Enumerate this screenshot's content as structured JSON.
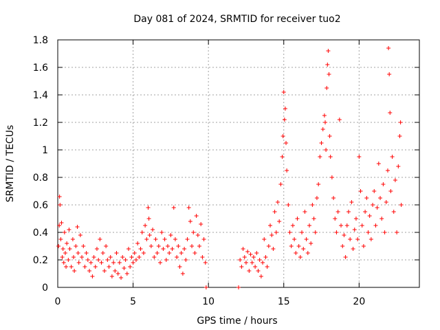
{
  "chart_data": {
    "type": "scatter",
    "title": "Day 081 of 2024, SRMTID for receiver tuo2",
    "xlabel": "GPS time / hours",
    "ylabel": "SRMTID / TECUs",
    "xlim": [
      0,
      24
    ],
    "ylim": [
      0,
      1.8
    ],
    "xticks": [
      0,
      5,
      10,
      15,
      20
    ],
    "xtick_labels": [
      "0",
      "5",
      "10",
      "15",
      "20"
    ],
    "yticks": [
      0,
      0.2,
      0.4,
      0.6,
      0.8,
      1.0,
      1.2,
      1.4,
      1.6,
      1.8
    ],
    "ytick_labels": [
      "0",
      "0.2",
      "0.4",
      "0.6",
      "0.8",
      "1",
      "1.2",
      "1.4",
      "1.6",
      "1.8"
    ],
    "grid": true,
    "marker": "+",
    "series_color": "#ff0000",
    "series": [
      {
        "name": "SRMTID",
        "points": [
          [
            0.05,
            0.3
          ],
          [
            0.1,
            0.45
          ],
          [
            0.12,
            0.66
          ],
          [
            0.15,
            0.6
          ],
          [
            0.2,
            0.35
          ],
          [
            0.25,
            0.47
          ],
          [
            0.3,
            0.22
          ],
          [
            0.35,
            0.28
          ],
          [
            0.4,
            0.18
          ],
          [
            0.45,
            0.4
          ],
          [
            0.5,
            0.25
          ],
          [
            0.55,
            0.15
          ],
          [
            0.6,
            0.32
          ],
          [
            0.7,
            0.2
          ],
          [
            0.75,
            0.42
          ],
          [
            0.8,
            0.28
          ],
          [
            0.9,
            0.15
          ],
          [
            1.0,
            0.35
          ],
          [
            1.05,
            0.22
          ],
          [
            1.1,
            0.12
          ],
          [
            1.2,
            0.3
          ],
          [
            1.3,
            0.44
          ],
          [
            1.35,
            0.25
          ],
          [
            1.4,
            0.18
          ],
          [
            1.5,
            0.38
          ],
          [
            1.6,
            0.22
          ],
          [
            1.7,
            0.3
          ],
          [
            1.8,
            0.15
          ],
          [
            1.9,
            0.25
          ],
          [
            2.0,
            0.2
          ],
          [
            2.1,
            0.12
          ],
          [
            2.2,
            0.18
          ],
          [
            2.3,
            0.08
          ],
          [
            2.4,
            0.22
          ],
          [
            2.5,
            0.15
          ],
          [
            2.6,
            0.28
          ],
          [
            2.7,
            0.2
          ],
          [
            2.8,
            0.35
          ],
          [
            2.9,
            0.18
          ],
          [
            3.0,
            0.25
          ],
          [
            3.1,
            0.12
          ],
          [
            3.2,
            0.3
          ],
          [
            3.3,
            0.2
          ],
          [
            3.4,
            0.15
          ],
          [
            3.5,
            0.22
          ],
          [
            3.6,
            0.08
          ],
          [
            3.7,
            0.18
          ],
          [
            3.8,
            0.12
          ],
          [
            3.9,
            0.25
          ],
          [
            4.0,
            0.1
          ],
          [
            4.1,
            0.18
          ],
          [
            4.2,
            0.07
          ],
          [
            4.3,
            0.22
          ],
          [
            4.4,
            0.14
          ],
          [
            4.5,
            0.2
          ],
          [
            4.6,
            0.1
          ],
          [
            4.7,
            0.28
          ],
          [
            4.8,
            0.15
          ],
          [
            4.9,
            0.22
          ],
          [
            5.0,
            0.18
          ],
          [
            5.1,
            0.25
          ],
          [
            5.2,
            0.2
          ],
          [
            5.3,
            0.32
          ],
          [
            5.4,
            0.22
          ],
          [
            5.5,
            0.28
          ],
          [
            5.6,
            0.4
          ],
          [
            5.7,
            0.25
          ],
          [
            5.8,
            0.45
          ],
          [
            5.9,
            0.35
          ],
          [
            6.0,
            0.58
          ],
          [
            6.05,
            0.5
          ],
          [
            6.1,
            0.38
          ],
          [
            6.2,
            0.3
          ],
          [
            6.3,
            0.42
          ],
          [
            6.4,
            0.22
          ],
          [
            6.5,
            0.35
          ],
          [
            6.6,
            0.25
          ],
          [
            6.7,
            0.3
          ],
          [
            6.8,
            0.18
          ],
          [
            6.9,
            0.4
          ],
          [
            7.0,
            0.28
          ],
          [
            7.1,
            0.35
          ],
          [
            7.2,
            0.2
          ],
          [
            7.3,
            0.3
          ],
          [
            7.4,
            0.25
          ],
          [
            7.5,
            0.38
          ],
          [
            7.6,
            0.28
          ],
          [
            7.7,
            0.58
          ],
          [
            7.8,
            0.35
          ],
          [
            7.9,
            0.22
          ],
          [
            8.0,
            0.3
          ],
          [
            8.1,
            0.15
          ],
          [
            8.2,
            0.25
          ],
          [
            8.3,
            0.1
          ],
          [
            8.4,
            0.28
          ],
          [
            8.5,
            0.2
          ],
          [
            8.6,
            0.35
          ],
          [
            8.7,
            0.58
          ],
          [
            8.8,
            0.48
          ],
          [
            8.9,
            0.3
          ],
          [
            9.0,
            0.4
          ],
          [
            9.1,
            0.25
          ],
          [
            9.2,
            0.52
          ],
          [
            9.3,
            0.38
          ],
          [
            9.4,
            0.3
          ],
          [
            9.5,
            0.46
          ],
          [
            9.6,
            0.22
          ],
          [
            9.7,
            0.35
          ],
          [
            9.8,
            0.18
          ],
          [
            9.85,
            0.0
          ],
          [
            12.0,
            0.0
          ],
          [
            12.1,
            0.2
          ],
          [
            12.2,
            0.15
          ],
          [
            12.3,
            0.28
          ],
          [
            12.4,
            0.22
          ],
          [
            12.5,
            0.18
          ],
          [
            12.6,
            0.26
          ],
          [
            12.7,
            0.12
          ],
          [
            12.8,
            0.24
          ],
          [
            12.9,
            0.18
          ],
          [
            13.0,
            0.22
          ],
          [
            13.1,
            0.15
          ],
          [
            13.2,
            0.25
          ],
          [
            13.3,
            0.12
          ],
          [
            13.4,
            0.2
          ],
          [
            13.5,
            0.08
          ],
          [
            13.6,
            0.18
          ],
          [
            13.7,
            0.35
          ],
          [
            13.8,
            0.22
          ],
          [
            13.9,
            0.15
          ],
          [
            14.0,
            0.3
          ],
          [
            14.1,
            0.45
          ],
          [
            14.2,
            0.38
          ],
          [
            14.3,
            0.28
          ],
          [
            14.4,
            0.55
          ],
          [
            14.5,
            0.4
          ],
          [
            14.6,
            0.62
          ],
          [
            14.7,
            0.48
          ],
          [
            14.8,
            0.75
          ],
          [
            14.9,
            0.95
          ],
          [
            14.95,
            1.1
          ],
          [
            15.0,
            1.42
          ],
          [
            15.05,
            1.22
          ],
          [
            15.1,
            1.3
          ],
          [
            15.15,
            1.05
          ],
          [
            15.2,
            0.85
          ],
          [
            15.3,
            0.6
          ],
          [
            15.4,
            0.4
          ],
          [
            15.5,
            0.3
          ],
          [
            15.6,
            0.45
          ],
          [
            15.7,
            0.35
          ],
          [
            15.8,
            0.25
          ],
          [
            15.9,
            0.5
          ],
          [
            16.0,
            0.3
          ],
          [
            16.1,
            0.22
          ],
          [
            16.2,
            0.4
          ],
          [
            16.3,
            0.28
          ],
          [
            16.4,
            0.55
          ],
          [
            16.5,
            0.35
          ],
          [
            16.6,
            0.25
          ],
          [
            16.7,
            0.45
          ],
          [
            16.8,
            0.32
          ],
          [
            16.9,
            0.6
          ],
          [
            17.0,
            0.5
          ],
          [
            17.1,
            0.4
          ],
          [
            17.2,
            0.65
          ],
          [
            17.3,
            0.75
          ],
          [
            17.4,
            0.95
          ],
          [
            17.5,
            1.05
          ],
          [
            17.6,
            1.15
          ],
          [
            17.7,
            1.25
          ],
          [
            17.75,
            1.2
          ],
          [
            17.8,
            1.0
          ],
          [
            17.85,
            1.45
          ],
          [
            17.9,
            1.62
          ],
          [
            17.95,
            1.72
          ],
          [
            18.0,
            1.55
          ],
          [
            18.05,
            1.1
          ],
          [
            18.1,
            0.95
          ],
          [
            18.2,
            0.8
          ],
          [
            18.3,
            0.65
          ],
          [
            18.4,
            0.5
          ],
          [
            18.5,
            0.4
          ],
          [
            18.6,
            0.55
          ],
          [
            18.7,
            1.22
          ],
          [
            18.8,
            0.45
          ],
          [
            18.9,
            0.3
          ],
          [
            19.0,
            0.38
          ],
          [
            19.1,
            0.22
          ],
          [
            19.2,
            0.45
          ],
          [
            19.3,
            0.55
          ],
          [
            19.4,
            0.35
          ],
          [
            19.5,
            0.62
          ],
          [
            19.6,
            0.28
          ],
          [
            19.7,
            0.42
          ],
          [
            19.8,
            0.5
          ],
          [
            19.9,
            0.35
          ],
          [
            20.0,
            0.95
          ],
          [
            20.1,
            0.7
          ],
          [
            20.2,
            0.45
          ],
          [
            20.3,
            0.3
          ],
          [
            20.4,
            0.55
          ],
          [
            20.5,
            0.65
          ],
          [
            20.6,
            0.4
          ],
          [
            20.7,
            0.52
          ],
          [
            20.8,
            0.35
          ],
          [
            20.9,
            0.6
          ],
          [
            21.0,
            0.7
          ],
          [
            21.1,
            0.45
          ],
          [
            21.2,
            0.58
          ],
          [
            21.3,
            0.9
          ],
          [
            21.4,
            0.65
          ],
          [
            21.5,
            0.5
          ],
          [
            21.6,
            0.75
          ],
          [
            21.7,
            0.4
          ],
          [
            21.8,
            0.62
          ],
          [
            21.9,
            0.85
          ],
          [
            21.95,
            1.74
          ],
          [
            22.0,
            1.55
          ],
          [
            22.05,
            1.27
          ],
          [
            22.1,
            0.7
          ],
          [
            22.2,
            0.95
          ],
          [
            22.3,
            0.55
          ],
          [
            22.4,
            0.78
          ],
          [
            22.5,
            0.4
          ],
          [
            22.6,
            0.88
          ],
          [
            22.7,
            1.1
          ],
          [
            22.75,
            1.2
          ],
          [
            22.8,
            0.6
          ]
        ]
      }
    ]
  }
}
